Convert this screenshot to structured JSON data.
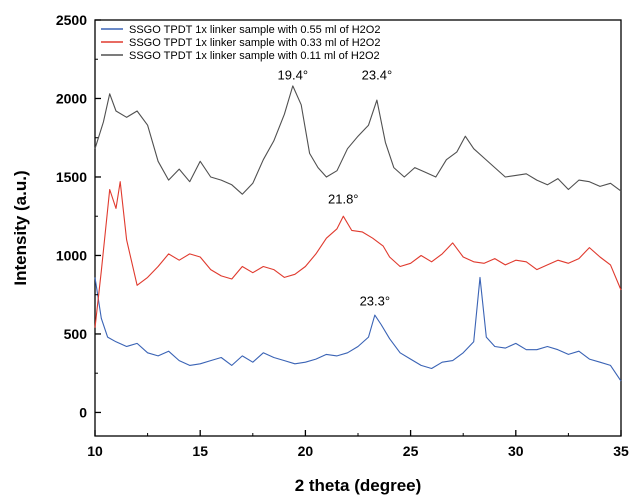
{
  "chart_data": {
    "type": "line",
    "xlabel": "2 theta (degree)",
    "ylabel": "Intensity (a.u.)",
    "xlim": [
      10,
      35
    ],
    "ylim": [
      -150,
      2500
    ],
    "xticks": [
      "10",
      "15",
      "20",
      "25",
      "30",
      "35"
    ],
    "yticks": [
      "0",
      "500",
      "1000",
      "1500",
      "2000",
      "2500"
    ],
    "grid": false,
    "legend_position": "top-left",
    "series": [
      {
        "name": "SSGO TPDT 1x linker sample with 0.55 ml of H2O2",
        "color": "#3a63b5",
        "points": [
          [
            10.0,
            860
          ],
          [
            10.3,
            600
          ],
          [
            10.6,
            480
          ],
          [
            11.0,
            450
          ],
          [
            11.5,
            420
          ],
          [
            12.0,
            440
          ],
          [
            12.5,
            380
          ],
          [
            13.0,
            360
          ],
          [
            13.5,
            390
          ],
          [
            14.0,
            330
          ],
          [
            14.5,
            300
          ],
          [
            15.0,
            310
          ],
          [
            15.5,
            330
          ],
          [
            16.0,
            350
          ],
          [
            16.5,
            300
          ],
          [
            17.0,
            360
          ],
          [
            17.5,
            320
          ],
          [
            18.0,
            380
          ],
          [
            18.5,
            350
          ],
          [
            19.0,
            330
          ],
          [
            19.5,
            310
          ],
          [
            20.0,
            320
          ],
          [
            20.5,
            340
          ],
          [
            21.0,
            370
          ],
          [
            21.5,
            360
          ],
          [
            22.0,
            380
          ],
          [
            22.5,
            420
          ],
          [
            23.0,
            480
          ],
          [
            23.3,
            620
          ],
          [
            23.6,
            560
          ],
          [
            24.0,
            470
          ],
          [
            24.5,
            380
          ],
          [
            25.0,
            340
          ],
          [
            25.5,
            300
          ],
          [
            26.0,
            280
          ],
          [
            26.5,
            320
          ],
          [
            27.0,
            330
          ],
          [
            27.5,
            380
          ],
          [
            28.0,
            450
          ],
          [
            28.3,
            860
          ],
          [
            28.6,
            480
          ],
          [
            29.0,
            420
          ],
          [
            29.5,
            410
          ],
          [
            30.0,
            440
          ],
          [
            30.5,
            400
          ],
          [
            31.0,
            400
          ],
          [
            31.5,
            420
          ],
          [
            32.0,
            400
          ],
          [
            32.5,
            370
          ],
          [
            33.0,
            390
          ],
          [
            33.5,
            340
          ],
          [
            34.0,
            320
          ],
          [
            34.5,
            300
          ],
          [
            35.0,
            200
          ]
        ]
      },
      {
        "name": "SSGO TPDT 1x linker sample with 0.33 ml of H2O2",
        "color": "#e03a2e",
        "points": [
          [
            10.0,
            540
          ],
          [
            10.3,
            900
          ],
          [
            10.7,
            1420
          ],
          [
            11.0,
            1300
          ],
          [
            11.2,
            1470
          ],
          [
            11.5,
            1100
          ],
          [
            12.0,
            810
          ],
          [
            12.5,
            860
          ],
          [
            13.0,
            930
          ],
          [
            13.5,
            1010
          ],
          [
            14.0,
            970
          ],
          [
            14.5,
            1010
          ],
          [
            15.0,
            990
          ],
          [
            15.5,
            910
          ],
          [
            16.0,
            870
          ],
          [
            16.5,
            850
          ],
          [
            17.0,
            930
          ],
          [
            17.5,
            890
          ],
          [
            18.0,
            930
          ],
          [
            18.5,
            910
          ],
          [
            19.0,
            860
          ],
          [
            19.5,
            880
          ],
          [
            20.0,
            930
          ],
          [
            20.5,
            1010
          ],
          [
            21.0,
            1110
          ],
          [
            21.5,
            1170
          ],
          [
            21.8,
            1250
          ],
          [
            22.2,
            1160
          ],
          [
            22.7,
            1150
          ],
          [
            23.2,
            1110
          ],
          [
            23.7,
            1060
          ],
          [
            24.0,
            990
          ],
          [
            24.5,
            930
          ],
          [
            25.0,
            950
          ],
          [
            25.5,
            1000
          ],
          [
            26.0,
            960
          ],
          [
            26.5,
            1010
          ],
          [
            27.0,
            1080
          ],
          [
            27.5,
            990
          ],
          [
            28.0,
            960
          ],
          [
            28.5,
            950
          ],
          [
            29.0,
            980
          ],
          [
            29.5,
            940
          ],
          [
            30.0,
            970
          ],
          [
            30.5,
            960
          ],
          [
            31.0,
            910
          ],
          [
            31.5,
            940
          ],
          [
            32.0,
            970
          ],
          [
            32.5,
            950
          ],
          [
            33.0,
            980
          ],
          [
            33.5,
            1050
          ],
          [
            34.0,
            990
          ],
          [
            34.5,
            940
          ],
          [
            35.0,
            780
          ]
        ]
      },
      {
        "name": "SSGO TPDT 1x linker sample with 0.11 ml of H2O2",
        "color": "#505050",
        "points": [
          [
            10.0,
            1680
          ],
          [
            10.4,
            1850
          ],
          [
            10.7,
            2030
          ],
          [
            11.0,
            1920
          ],
          [
            11.5,
            1880
          ],
          [
            12.0,
            1920
          ],
          [
            12.5,
            1830
          ],
          [
            13.0,
            1600
          ],
          [
            13.5,
            1480
          ],
          [
            14.0,
            1550
          ],
          [
            14.5,
            1470
          ],
          [
            15.0,
            1600
          ],
          [
            15.5,
            1500
          ],
          [
            16.0,
            1480
          ],
          [
            16.5,
            1450
          ],
          [
            17.0,
            1390
          ],
          [
            17.5,
            1460
          ],
          [
            18.0,
            1610
          ],
          [
            18.5,
            1730
          ],
          [
            19.0,
            1900
          ],
          [
            19.4,
            2080
          ],
          [
            19.8,
            1960
          ],
          [
            20.2,
            1650
          ],
          [
            20.6,
            1560
          ],
          [
            21.0,
            1500
          ],
          [
            21.5,
            1540
          ],
          [
            22.0,
            1680
          ],
          [
            22.5,
            1760
          ],
          [
            23.0,
            1830
          ],
          [
            23.4,
            1990
          ],
          [
            23.8,
            1720
          ],
          [
            24.2,
            1560
          ],
          [
            24.7,
            1500
          ],
          [
            25.2,
            1560
          ],
          [
            25.7,
            1530
          ],
          [
            26.2,
            1500
          ],
          [
            26.7,
            1610
          ],
          [
            27.2,
            1660
          ],
          [
            27.6,
            1760
          ],
          [
            28.0,
            1680
          ],
          [
            28.5,
            1620
          ],
          [
            29.0,
            1560
          ],
          [
            29.5,
            1500
          ],
          [
            30.0,
            1510
          ],
          [
            30.5,
            1520
          ],
          [
            31.0,
            1480
          ],
          [
            31.5,
            1450
          ],
          [
            32.0,
            1490
          ],
          [
            32.5,
            1420
          ],
          [
            33.0,
            1480
          ],
          [
            33.5,
            1470
          ],
          [
            34.0,
            1440
          ],
          [
            34.5,
            1460
          ],
          [
            35.0,
            1410
          ]
        ]
      }
    ],
    "annotations": [
      {
        "text": "19.4°",
        "x": 19.4,
        "y": 2120
      },
      {
        "text": "23.4°",
        "x": 23.4,
        "y": 2120
      },
      {
        "text": "21.8°",
        "x": 21.8,
        "y": 1330
      },
      {
        "text": "23.3°",
        "x": 23.3,
        "y": 680
      }
    ]
  }
}
